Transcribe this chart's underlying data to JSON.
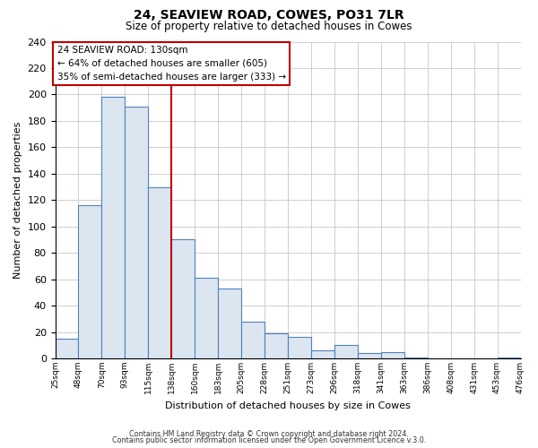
{
  "title": "24, SEAVIEW ROAD, COWES, PO31 7LR",
  "subtitle": "Size of property relative to detached houses in Cowes",
  "xlabel": "Distribution of detached houses by size in Cowes",
  "ylabel": "Number of detached properties",
  "bin_labels": [
    "25sqm",
    "48sqm",
    "70sqm",
    "93sqm",
    "115sqm",
    "138sqm",
    "160sqm",
    "183sqm",
    "205sqm",
    "228sqm",
    "251sqm",
    "273sqm",
    "296sqm",
    "318sqm",
    "341sqm",
    "363sqm",
    "386sqm",
    "408sqm",
    "431sqm",
    "453sqm",
    "476sqm"
  ],
  "bar_heights": [
    15,
    116,
    198,
    191,
    130,
    90,
    61,
    53,
    28,
    19,
    16,
    6,
    10,
    4,
    5,
    1,
    0,
    0,
    0,
    1
  ],
  "bar_color": "#dce6f1",
  "bar_edge_color": "#4f81bd",
  "vline_x_index": 5,
  "vline_color": "#c00000",
  "ylim": [
    0,
    240
  ],
  "yticks": [
    0,
    20,
    40,
    60,
    80,
    100,
    120,
    140,
    160,
    180,
    200,
    220,
    240
  ],
  "annotation_title": "24 SEAVIEW ROAD: 130sqm",
  "annotation_line1": "← 64% of detached houses are smaller (605)",
  "annotation_line2": "35% of semi-detached houses are larger (333) →",
  "annotation_box_color": "#ffffff",
  "annotation_box_edge": "#c00000",
  "footer1": "Contains HM Land Registry data © Crown copyright and database right 2024.",
  "footer2": "Contains public sector information licensed under the Open Government Licence v.3.0.",
  "background_color": "#ffffff",
  "grid_color": "#c8c8c8"
}
